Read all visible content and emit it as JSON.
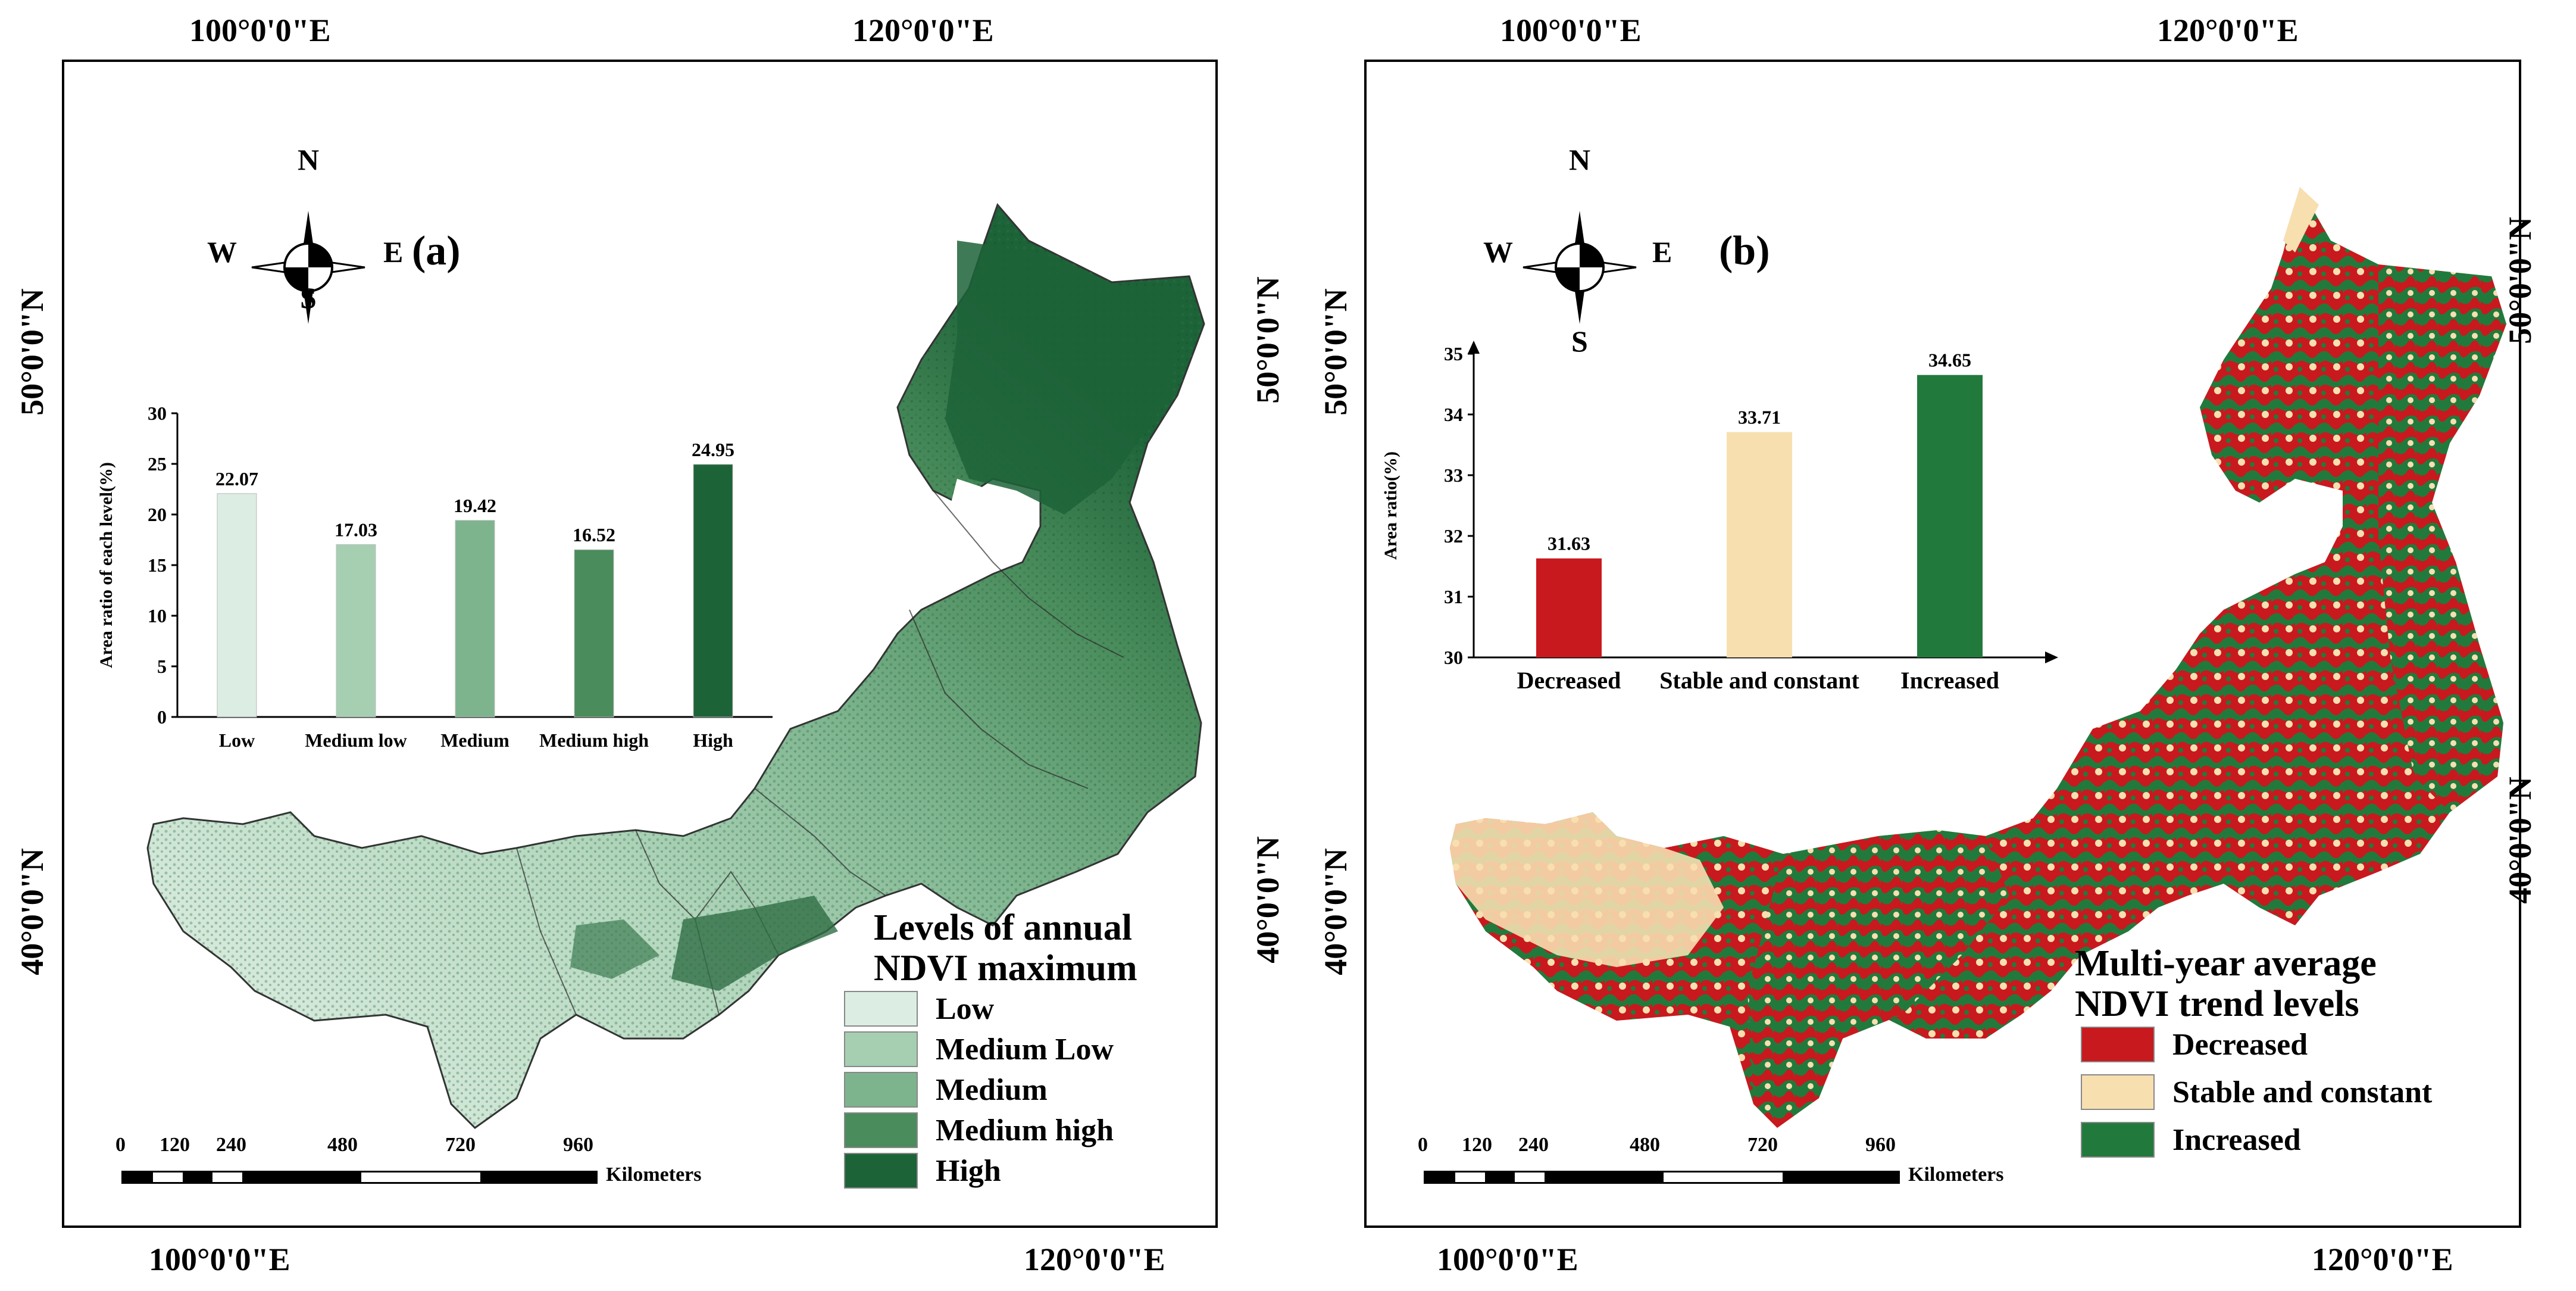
{
  "panel_a": {
    "label": "(a)",
    "coords": {
      "top_left": "100°0'0\"E",
      "top_right": "120°0'0\"E",
      "bottom_left": "100°0'0\"E",
      "bottom_right": "120°0'0\"E",
      "left_upper": "50°0'0\"N",
      "left_lower": "40°0'0\"N",
      "right_upper": "50°0'0\"N",
      "right_lower": "40°0'0\"N"
    },
    "compass": {
      "n": "N",
      "s": "S",
      "e": "E",
      "w": "W"
    },
    "legend": {
      "title_line1": "Levels of annual",
      "title_line2": "NDVI maximum",
      "items": [
        {
          "label": "Low",
          "color": "#dcede3"
        },
        {
          "label": "Medium Low",
          "color": "#a6cfb2"
        },
        {
          "label": "Medium",
          "color": "#7db48e"
        },
        {
          "label": "Medium high",
          "color": "#4a8c5c"
        },
        {
          "label": "High",
          "color": "#1d6338"
        }
      ]
    },
    "scale": {
      "ticks": [
        "0",
        "120",
        "240",
        "480",
        "720",
        "960"
      ],
      "unit": "Kilometers"
    },
    "chart_data": {
      "type": "bar",
      "categories": [
        "Low",
        "Medium low",
        "Medium",
        "Medium high",
        "High"
      ],
      "values": [
        22.07,
        17.03,
        19.42,
        16.52,
        24.95
      ],
      "value_labels": [
        "22.07",
        "17.03",
        "19.42",
        "16.52",
        "24.95"
      ],
      "colors": [
        "#dcede3",
        "#a6cfb2",
        "#7db48e",
        "#4a8c5c",
        "#1d6338"
      ],
      "ylabel": "Area ratio of each level(%)",
      "ylim": [
        0,
        30
      ],
      "yticks": [
        "0",
        "5",
        "10",
        "15",
        "20",
        "25",
        "30"
      ]
    }
  },
  "panel_b": {
    "label": "(b)",
    "coords": {
      "top_left": "100°0'0\"E",
      "top_right": "120°0'0\"E",
      "bottom_left": "100°0'0\"E",
      "bottom_right": "120°0'0\"E",
      "left_upper": "50°0'0\"N",
      "left_lower": "40°0'0\"N",
      "right_upper": "50°0'0\"N",
      "right_lower": "40°0'0\"N"
    },
    "compass": {
      "n": "N",
      "s": "S",
      "e": "E",
      "w": "W"
    },
    "legend": {
      "title_line1": "Multi-year average",
      "title_line2": "NDVI trend levels",
      "items": [
        {
          "label": "Decreased",
          "color": "#c8191e"
        },
        {
          "label": "Stable and constant",
          "color": "#f7dfb0"
        },
        {
          "label": "Increased",
          "color": "#217a3c"
        }
      ]
    },
    "scale": {
      "ticks": [
        "0",
        "120",
        "240",
        "480",
        "720",
        "960"
      ],
      "unit": "Kilometers"
    },
    "chart_data": {
      "type": "bar",
      "categories": [
        "Decreased",
        "Stable and constant",
        "Increased"
      ],
      "values": [
        31.63,
        33.71,
        34.65
      ],
      "value_labels": [
        "31.63",
        "33.71",
        "34.65"
      ],
      "colors": [
        "#c8191e",
        "#f7dfb0",
        "#217a3c"
      ],
      "ylabel": "Area ratio(%)",
      "ylim": [
        30,
        35
      ],
      "yticks": [
        "30",
        "31",
        "32",
        "33",
        "34",
        "35"
      ]
    }
  }
}
